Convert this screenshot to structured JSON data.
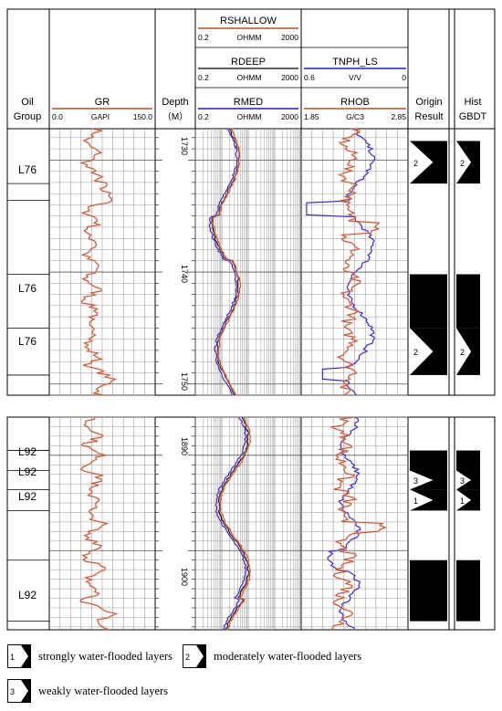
{
  "headers": {
    "oil_group": [
      "Oil",
      "Group"
    ],
    "gr": {
      "name": "GR",
      "min": "0.0",
      "unit": "GAPI",
      "max": "150.0",
      "color": "#b5522c"
    },
    "depth": [
      "Depth",
      "（M）"
    ],
    "rshallow": {
      "name": "RSHALLOW",
      "min": "0.2",
      "unit": "OHMM",
      "max": "2000",
      "color": "#b5522c"
    },
    "rdeep": {
      "name": "RDEEP",
      "min": "0.2",
      "unit": "OHMM",
      "max": "2000",
      "color": "#000000"
    },
    "rmed": {
      "name": "RMED",
      "min": "0.2",
      "unit": "OHMM",
      "max": "2000",
      "color": "#1f1fcc"
    },
    "tnph": {
      "name": "TNPH_LS",
      "min": "0.6",
      "unit": "V/V",
      "max": "0",
      "color": "#1f1fcc"
    },
    "rhob": {
      "name": "RHOB",
      "min": "1.85",
      "unit": "G/C3",
      "max": "2.85",
      "color": "#b5522c"
    },
    "origin": [
      "Origin",
      "Result"
    ],
    "hist": [
      "Hist",
      "GBDT"
    ]
  },
  "panel1": {
    "depth_labels": [
      "1730",
      "1740",
      "1750"
    ],
    "layers": [
      "L76",
      "L76",
      "L76"
    ],
    "origin_results": [
      {
        "top": 1728.3,
        "bottom": 1732.1,
        "class": "2"
      },
      {
        "top": 1740.2,
        "bottom": 1745.0,
        "class": ""
      },
      {
        "top": 1745.0,
        "bottom": 1749.2,
        "class": "2"
      }
    ],
    "hist_results": [
      {
        "top": 1728.3,
        "bottom": 1732.1,
        "class": "2"
      },
      {
        "top": 1740.2,
        "bottom": 1745.0,
        "class": ""
      },
      {
        "top": 1745.0,
        "bottom": 1749.2,
        "class": "2"
      }
    ]
  },
  "panel2": {
    "depth_labels": [
      "1890",
      "1900"
    ],
    "layers": [
      "L92",
      "L92",
      "L92",
      "L92"
    ],
    "origin_results": [
      {
        "top": 1889.5,
        "bottom": 1891.6,
        "class": ""
      },
      {
        "top": 1891.6,
        "bottom": 1893.6,
        "class": "3"
      },
      {
        "top": 1893.6,
        "bottom": 1895.8,
        "class": "1"
      },
      {
        "top": 1901.0,
        "bottom": 1907.4,
        "class": ""
      }
    ],
    "hist_results": [
      {
        "top": 1889.5,
        "bottom": 1891.6,
        "class": ""
      },
      {
        "top": 1891.6,
        "bottom": 1893.6,
        "class": "3"
      },
      {
        "top": 1893.6,
        "bottom": 1895.8,
        "class": "1"
      },
      {
        "top": 1901.0,
        "bottom": 1907.4,
        "class": ""
      }
    ]
  },
  "legend": [
    {
      "num": "1",
      "label": "strongly water-flooded layers"
    },
    {
      "num": "2",
      "label": "moderately water-flooded layers"
    },
    {
      "num": "3",
      "label": "weakly water-flooded layers"
    }
  ]
}
